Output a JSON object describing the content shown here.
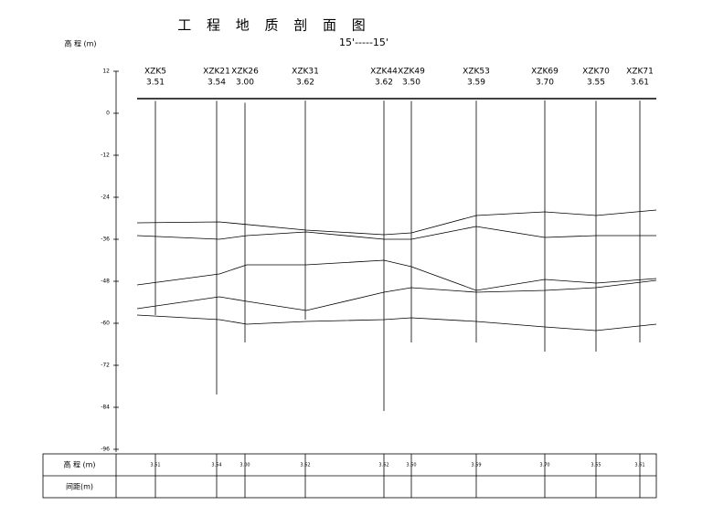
{
  "title": "工 程 地 质 剖 面 图",
  "section": "15'-----15'",
  "y_axis": {
    "label": "高 程 (m)",
    "ticks": [
      12,
      0,
      -12,
      -24,
      -36,
      -48,
      -60,
      -72,
      -84,
      -96
    ]
  },
  "boreholes": [
    {
      "name": "XZK5",
      "elevation": "3.51"
    },
    {
      "name": "XZK21",
      "elevation": "3.54"
    },
    {
      "name": "XZK26",
      "elevation": "3.00"
    },
    {
      "name": "XZK31",
      "elevation": "3.62"
    },
    {
      "name": "XZK44",
      "elevation": "3.62"
    },
    {
      "name": "XZK49",
      "elevation": "3.50"
    },
    {
      "name": "XZK53",
      "elevation": "3.59"
    },
    {
      "name": "XZK69",
      "elevation": "3.70"
    },
    {
      "name": "XZK70",
      "elevation": "3.55"
    },
    {
      "name": "XZK71",
      "elevation": "3.61"
    }
  ],
  "table": {
    "row_elevation": "高 程 (m)",
    "row_distance": "间距(m)"
  }
}
